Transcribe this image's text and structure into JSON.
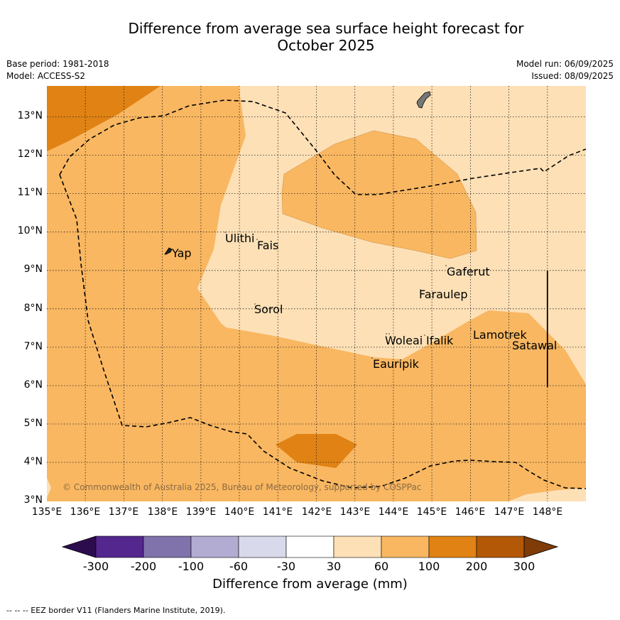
{
  "title_line1": "Difference from average sea surface height forecast for",
  "title_line2": "October 2025",
  "base_period": "Base period: 1981-2018",
  "model": "Model: ACCESS-S2",
  "model_run": "Model run: 06/09/2025",
  "issued": "Issued: 08/09/2025",
  "copyright": "© Commonwealth of Australia 2025, Bureau of Meteorology, supported by COSPPac",
  "lat_labels": [
    "13°N",
    "12°N",
    "11°N",
    "10°N",
    "9°N",
    "8°N",
    "7°N",
    "6°N",
    "5°N",
    "4°N",
    "3°N"
  ],
  "lon_labels": [
    "135°E",
    "136°E",
    "137°E",
    "138°E",
    "139°E",
    "140°E",
    "141°E",
    "142°E",
    "143°E",
    "144°E",
    "145°E",
    "146°E",
    "147°E",
    "148°E"
  ],
  "places": {
    "yap": "Yap",
    "ulithi": "Ulithi",
    "fais": "Fais",
    "sorol": "Sorol",
    "gaferut": "Gaferut",
    "faraulep": "Faraulep",
    "woleai": "Woleai",
    "ifalik": "Ifalik",
    "lamotrek": "Lamotrek",
    "satawal": "Satawal",
    "eauripik": "Eauripik"
  },
  "colorbar": {
    "ticks": [
      "-300",
      "-200",
      "-100",
      "-60",
      "-30",
      "30",
      "60",
      "100",
      "200",
      "300"
    ],
    "colors": [
      "#2d0c4e",
      "#54278f",
      "#8073ac",
      "#b2abd2",
      "#d8daeb",
      "#ffffff",
      "#fde0b6",
      "#f9b761",
      "#e08214",
      "#b35806",
      "#7f3b08"
    ],
    "title": "Difference from average (mm)"
  },
  "footer": "--  --  -- EEZ border V11 (Flanders Marine Institute, 2019)."
}
